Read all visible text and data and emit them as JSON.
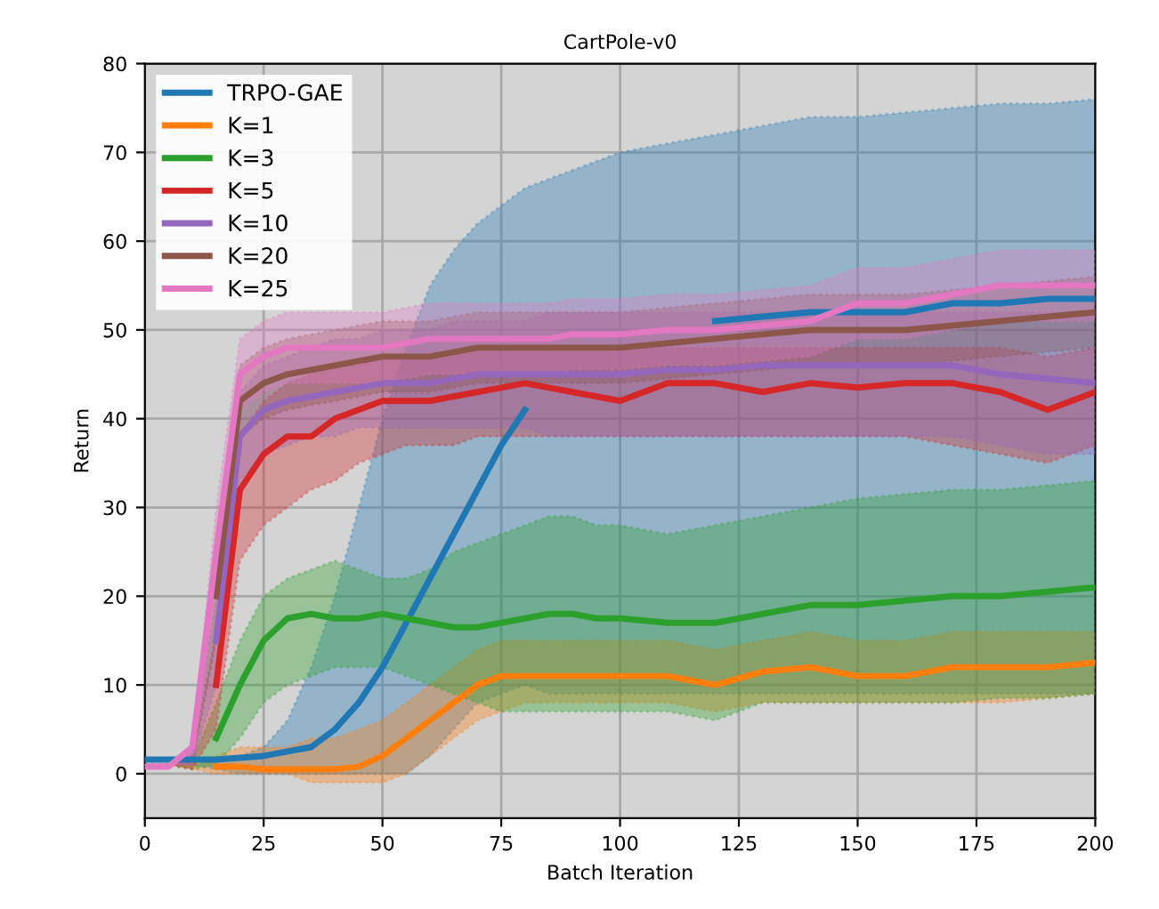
{
  "chart_data": {
    "type": "line",
    "title": "CartPole-v0",
    "xlabel": "Batch Iteration",
    "ylabel": "Return",
    "x": [
      0,
      5,
      10,
      15,
      20,
      25,
      30,
      35,
      40,
      45,
      50,
      55,
      60,
      65,
      70,
      75,
      80,
      85,
      90,
      95,
      100,
      110,
      120,
      130,
      140,
      150,
      160,
      170,
      180,
      190,
      200
    ],
    "xlim": [
      0,
      200
    ],
    "xticks": [
      0,
      25,
      50,
      75,
      100,
      125,
      150,
      175,
      200
    ],
    "ylim": [
      -5,
      80
    ],
    "yticks": [
      0,
      10,
      20,
      30,
      40,
      50,
      60,
      70,
      80
    ],
    "grid": true,
    "legend": "top left",
    "marker": "none",
    "line_style": "solid",
    "series": [
      {
        "name": "TRPO-GAE",
        "color": "#1f77b4",
        "values": [
          1.6,
          1.6,
          1.6,
          1.6,
          1.8,
          2,
          2.5,
          3,
          5,
          8,
          12,
          17,
          22,
          27,
          32,
          37,
          41,
          null,
          null,
          null,
          null,
          null,
          51,
          51.5,
          52,
          52,
          52,
          53,
          53,
          53.5,
          53.5
        ],
        "upper": [
          1,
          1,
          1,
          1.5,
          2,
          3,
          6,
          12,
          20,
          30,
          40,
          48,
          55,
          59,
          62,
          64,
          66,
          67,
          68,
          69,
          70,
          71,
          72,
          73,
          74,
          74,
          74.5,
          75,
          75.5,
          75.5,
          76
        ],
        "lower": [
          1,
          1,
          1,
          0.5,
          0,
          0,
          0,
          0,
          0,
          0,
          0,
          0,
          2,
          5,
          8,
          9,
          10,
          9,
          9,
          9,
          9,
          9,
          9,
          9,
          9,
          9,
          9,
          9,
          9,
          9,
          9
        ]
      },
      {
        "name": "K=1",
        "color": "#ff7f0e",
        "values": [
          null,
          null,
          null,
          0.8,
          0.8,
          0.5,
          0.5,
          0.5,
          0.5,
          0.8,
          2,
          4,
          6,
          8,
          10,
          11,
          11,
          11,
          11,
          11,
          11,
          11,
          10,
          11.5,
          12,
          11,
          11,
          12,
          12,
          12,
          12.5
        ],
        "upper": [
          1,
          1,
          1.5,
          2,
          3,
          3,
          3,
          4,
          4,
          5,
          6,
          8,
          10,
          12,
          14,
          15,
          15,
          15,
          15,
          15,
          15,
          15,
          14,
          15,
          16,
          15,
          15,
          16,
          16,
          16,
          16
        ],
        "lower": [
          1,
          1,
          0.5,
          0,
          0,
          0,
          0,
          -1,
          -1,
          -1,
          -1,
          0,
          2,
          4,
          6,
          7,
          8,
          8,
          8,
          8,
          8,
          8,
          7,
          8,
          8,
          8,
          8,
          8,
          8,
          8.5,
          9
        ]
      },
      {
        "name": "K=3",
        "color": "#2ca02c",
        "values": [
          null,
          null,
          null,
          4,
          10,
          15,
          17.5,
          18,
          17.5,
          17.5,
          18,
          17.5,
          17,
          16.5,
          16.5,
          17,
          17.5,
          18,
          18,
          17.5,
          17.5,
          17,
          17,
          18,
          19,
          19,
          19.5,
          20,
          20,
          20.5,
          21
        ],
        "upper": [
          1,
          1,
          1.5,
          8,
          15,
          20,
          22,
          23,
          24,
          23,
          22,
          22,
          23,
          25,
          26,
          27,
          28,
          29,
          29,
          28,
          28,
          27,
          28,
          29,
          30,
          31,
          31.5,
          32,
          32,
          32.5,
          33
        ],
        "lower": [
          1,
          1,
          0.5,
          1,
          4,
          8,
          10,
          11,
          12,
          12,
          12,
          11,
          10,
          9,
          8,
          7,
          7,
          7,
          7,
          7,
          7,
          7,
          6,
          8,
          8,
          8,
          8,
          8,
          8.5,
          8.5,
          9
        ]
      },
      {
        "name": "K=5",
        "color": "#d62728",
        "values": [
          null,
          null,
          null,
          10,
          32,
          36,
          38,
          38,
          40,
          41,
          42,
          42,
          42,
          42.5,
          43,
          43.5,
          44,
          43.5,
          43,
          42.5,
          42,
          44,
          44,
          43,
          44,
          43.5,
          44,
          44,
          43,
          41,
          43
        ],
        "upper": [
          1,
          1,
          2,
          16,
          38,
          42,
          44,
          45,
          46,
          46,
          47,
          47,
          47,
          47.5,
          48,
          48,
          48,
          48,
          48,
          48,
          48,
          48,
          48,
          48,
          48,
          48,
          48,
          48,
          48,
          47,
          48
        ],
        "lower": [
          1,
          1,
          0.5,
          5,
          24,
          28,
          30,
          32,
          33,
          35,
          36,
          37,
          37,
          37,
          38,
          38,
          38,
          38,
          38,
          38,
          38,
          38,
          38,
          38,
          38,
          38,
          38,
          37,
          36,
          35,
          37
        ]
      },
      {
        "name": "K=10",
        "color": "#9467bd",
        "values": [
          null,
          null,
          null,
          15,
          38,
          41,
          42,
          42.5,
          43,
          43.5,
          44,
          44,
          44,
          44.5,
          45,
          45,
          45,
          45,
          45,
          45,
          45,
          45.5,
          45.5,
          46,
          46,
          46,
          46,
          46,
          45,
          44.5,
          44
        ],
        "upper": [
          1,
          1,
          3,
          20,
          43,
          46,
          47,
          48,
          49,
          49,
          50,
          50,
          50,
          51,
          51,
          51,
          51,
          52,
          52,
          52,
          52,
          52,
          52,
          52,
          52,
          52,
          52,
          52,
          52,
          52,
          52
        ],
        "lower": [
          1,
          1,
          1,
          10,
          33,
          36,
          37,
          38,
          38,
          39,
          39,
          39,
          39,
          39,
          39,
          39,
          39,
          38,
          38,
          38,
          38,
          38,
          38,
          38,
          38,
          38,
          38,
          38,
          37,
          36,
          36
        ]
      },
      {
        "name": "K=20",
        "color": "#8c564b",
        "values": [
          null,
          null,
          null,
          20,
          42,
          44,
          45,
          45.5,
          46,
          46.5,
          47,
          47,
          47,
          47.5,
          48,
          48,
          48,
          48,
          48,
          48,
          48,
          48.5,
          49,
          49.5,
          50,
          50,
          50,
          50.5,
          51,
          51.5,
          52
        ],
        "upper": [
          1,
          1,
          3,
          25,
          46,
          48,
          49,
          49.5,
          50,
          50.5,
          51,
          51,
          51,
          51.5,
          52,
          52,
          52,
          52,
          52,
          52,
          52,
          52.5,
          53,
          53.5,
          54,
          54,
          54,
          54.5,
          55,
          55.5,
          56
        ],
        "lower": [
          1,
          1,
          1,
          15,
          38,
          40,
          41,
          41.5,
          42,
          42.5,
          43,
          43,
          43,
          43.5,
          44,
          44,
          44,
          44,
          44,
          44,
          44,
          44.5,
          45,
          45.5,
          46,
          46,
          46,
          46.5,
          47,
          47.5,
          48
        ]
      },
      {
        "name": "K=25",
        "color": "#e377c2",
        "values": [
          0.8,
          0.8,
          3,
          25,
          45,
          47,
          48,
          48,
          48,
          48,
          48,
          48.5,
          49,
          49,
          49,
          49,
          49,
          49,
          49.5,
          49.5,
          49.5,
          50,
          50,
          50.5,
          51,
          53,
          53,
          54,
          55,
          55,
          55
        ],
        "upper": [
          1,
          1,
          3,
          30,
          49,
          51,
          52,
          52,
          52,
          52,
          52,
          52.5,
          53,
          53,
          53,
          53,
          53,
          53,
          53.5,
          53.5,
          53.5,
          54,
          54,
          54.5,
          55,
          57,
          57,
          58,
          59,
          59,
          59
        ],
        "lower": [
          1,
          1,
          1,
          20,
          41,
          43,
          44,
          44,
          44,
          44,
          44,
          44.5,
          45,
          45,
          45,
          45,
          45,
          45,
          45.5,
          45.5,
          45.5,
          46,
          46,
          46.5,
          47,
          49,
          49,
          50,
          51,
          51,
          51
        ]
      }
    ]
  }
}
